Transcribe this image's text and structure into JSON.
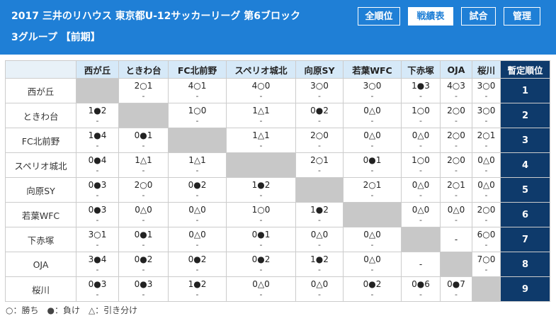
{
  "header": {
    "title_line1": "2017 三井のリハウス 東京都U-12サッカーリーグ 第6ブロック",
    "title_line2": "3グループ 【前期】",
    "buttons": [
      "全順位",
      "戦績表",
      "試合",
      "管理"
    ],
    "active_button": "戦績表",
    "colors": {
      "header_bg": "#1f7fd6",
      "rank_bg": "#0e3a6b",
      "self_cell": "#c8c8c8",
      "col_header_bg": "#d6e9f8"
    }
  },
  "table": {
    "rank_header": "暫定順位",
    "teams": [
      "西が丘",
      "ときわ台",
      "FC北前野",
      "スペリオ城北",
      "向原SY",
      "若葉WFC",
      "下赤塚",
      "OJA",
      "桜川"
    ],
    "row_labels": [
      "西が丘",
      "ときわ台",
      "FC北前野",
      "スペリオ城北",
      "向原SY",
      "若葉WFC",
      "下赤塚",
      "OJA",
      "桜川"
    ],
    "ranks": [
      "1",
      "2",
      "3",
      "4",
      "5",
      "6",
      "7",
      "8",
      "9"
    ],
    "results": [
      [
        null,
        "2○1",
        "4○1",
        "4○0",
        "3○0",
        "3○0",
        "1●3",
        "4○3",
        "3○0"
      ],
      [
        "1●2",
        null,
        "1○0",
        "1△1",
        "0●2",
        "0△0",
        "1○0",
        "2○0",
        "3○0"
      ],
      [
        "1●4",
        "0●1",
        null,
        "1△1",
        "2○0",
        "0△0",
        "0△0",
        "2○0",
        "2○1"
      ],
      [
        "0●4",
        "1△1",
        "1△1",
        null,
        "2○1",
        "0●1",
        "1○0",
        "2○0",
        "0△0"
      ],
      [
        "0●3",
        "2○0",
        "0●2",
        "1●2",
        null,
        "2○1",
        "0△0",
        "2○1",
        "0△0"
      ],
      [
        "0●3",
        "0△0",
        "0△0",
        "1○0",
        "1●2",
        null,
        "0△0",
        "0△0",
        "2○0"
      ],
      [
        "3○1",
        "0●1",
        "0△0",
        "0●1",
        "0△0",
        "0△0",
        null,
        "-",
        "6○0"
      ],
      [
        "3●4",
        "0●2",
        "0●2",
        "0●2",
        "1●2",
        "0△0",
        "-",
        null,
        "7○0"
      ],
      [
        "0●3",
        "0●3",
        "1●2",
        "0△0",
        "0△0",
        "0●2",
        "0●6",
        "0●7",
        null
      ]
    ],
    "second_line": "-"
  },
  "legend": "○：勝ち　●：負け　△：引き分け"
}
